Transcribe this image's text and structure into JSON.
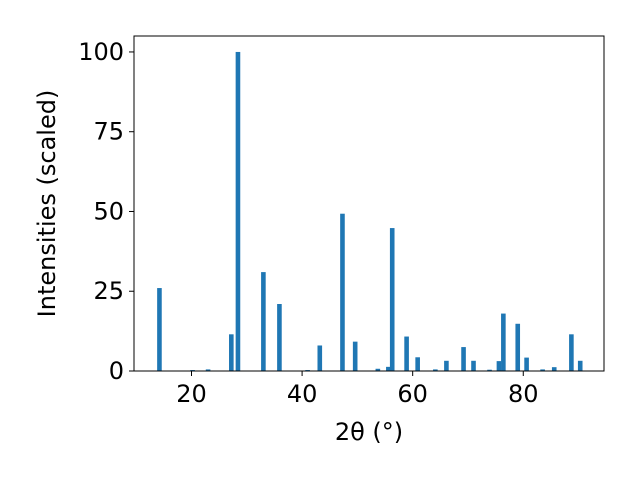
{
  "chart_data": {
    "type": "bar",
    "xlabel": "2θ (°)",
    "ylabel": "Intensities (scaled)",
    "xlim": [
      9.6,
      94.6
    ],
    "ylim": [
      0,
      105
    ],
    "xticks": [
      20,
      40,
      60,
      80
    ],
    "yticks": [
      0,
      25,
      50,
      75,
      100
    ],
    "x": [
      14.2,
      20.2,
      23.0,
      27.2,
      28.4,
      33.0,
      35.9,
      41.0,
      43.2,
      47.3,
      49.6,
      53.7,
      55.6,
      56.3,
      58.9,
      60.9,
      64.1,
      66.1,
      69.2,
      71.0,
      73.9,
      75.6,
      76.4,
      79.0,
      80.6,
      83.5,
      85.6,
      88.7,
      90.3
    ],
    "values": [
      26,
      0.3,
      0.5,
      11.5,
      100,
      31,
      21,
      0.3,
      8,
      49.3,
      9.2,
      0.7,
      1.3,
      44.8,
      10.8,
      4.3,
      0.5,
      3.2,
      7.5,
      3.2,
      0.4,
      3.1,
      18,
      14.8,
      4.2,
      0.5,
      1.2,
      11.5,
      3.2
    ],
    "bar_color": "#1f77b4",
    "grid": false,
    "legend": "none"
  }
}
